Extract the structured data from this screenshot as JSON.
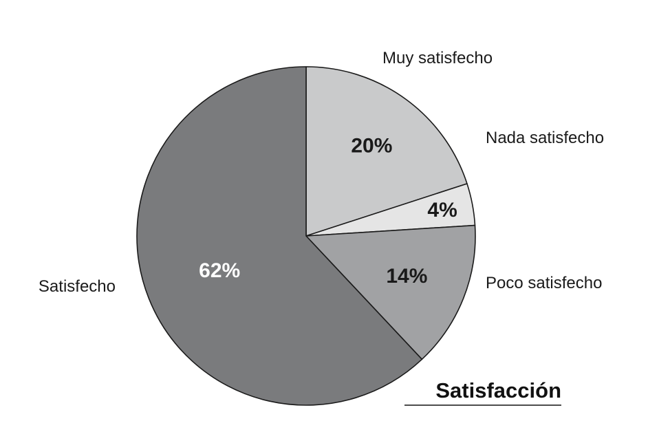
{
  "chart_data": {
    "type": "pie",
    "title": "Satisfacción",
    "categories": [
      "Muy satisfecho",
      "Nada satisfecho",
      "Poco satisfecho",
      "Satisfecho"
    ],
    "values": [
      20,
      4,
      14,
      62
    ],
    "value_labels": [
      "20%",
      "4%",
      "14%",
      "62%"
    ],
    "colors": [
      "#c9cacb",
      "#e5e5e5",
      "#a1a2a4",
      "#7a7b7d"
    ],
    "label_colors": [
      "#1a1a1a",
      "#1a1a1a",
      "#1a1a1a",
      "#ffffff"
    ],
    "start_angle": "12 o'clock",
    "direction": "clockwise",
    "legend": "none (direct labels)"
  }
}
